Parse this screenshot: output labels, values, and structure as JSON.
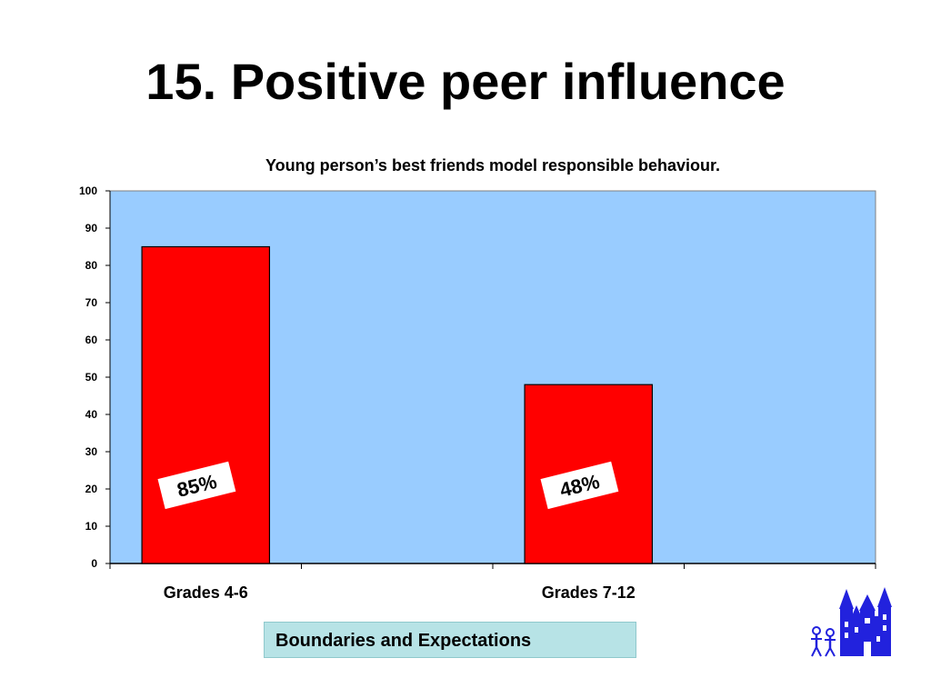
{
  "slide": {
    "title": "15. Positive peer influence",
    "footer": "Boundaries and Expectations",
    "logo_icon": "castle-with-people-icon"
  },
  "colors": {
    "plot_background": "#99ccff",
    "bar_fill": "#ff0000",
    "bar_stroke": "#000000",
    "label_box": "#ffffff",
    "logo": "#2222dd",
    "footer_background": "#b7e3e6"
  },
  "chart_data": {
    "type": "bar",
    "title": "Young person’s best friends model responsible behaviour.",
    "categories": [
      "Grades 4-6",
      "Grades 7-12"
    ],
    "values": [
      85,
      48
    ],
    "data_labels": [
      "85%",
      "48%"
    ],
    "yticks": [
      "0",
      "10",
      "20",
      "30",
      "40",
      "50",
      "60",
      "70",
      "80",
      "90",
      "100"
    ],
    "ylim": [
      0,
      100
    ],
    "xlabel": "",
    "ylabel": "",
    "grid": false,
    "legend": "none"
  }
}
